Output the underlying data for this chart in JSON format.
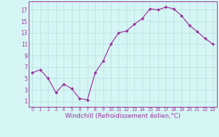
{
  "x": [
    0,
    1,
    2,
    3,
    4,
    5,
    6,
    7,
    8,
    9,
    10,
    11,
    12,
    13,
    14,
    15,
    16,
    17,
    18,
    19,
    20,
    21,
    22,
    23
  ],
  "y": [
    6.0,
    6.5,
    5.0,
    2.5,
    4.0,
    3.2,
    1.5,
    1.2,
    6.0,
    8.0,
    11.0,
    13.0,
    13.3,
    14.5,
    15.5,
    17.2,
    17.0,
    17.5,
    17.2,
    16.0,
    14.3,
    13.2,
    12.0,
    11.0
  ],
  "line_color": "#993399",
  "marker": "D",
  "marker_size": 2,
  "bg_color": "#d6f5f5",
  "grid_color": "#b8dede",
  "xlabel": "Windchill (Refroidissement éolien,°C)",
  "xlabel_fontsize": 6.5,
  "ylabel_ticks": [
    1,
    3,
    5,
    7,
    9,
    11,
    13,
    15,
    17
  ],
  "xlim": [
    -0.5,
    23.5
  ],
  "ylim": [
    0,
    18.5
  ],
  "xtick_fontsize": 4.8,
  "ytick_fontsize": 5.5,
  "tick_color": "#993399",
  "spine_color": "#993399",
  "xlabel_color": "#993399"
}
